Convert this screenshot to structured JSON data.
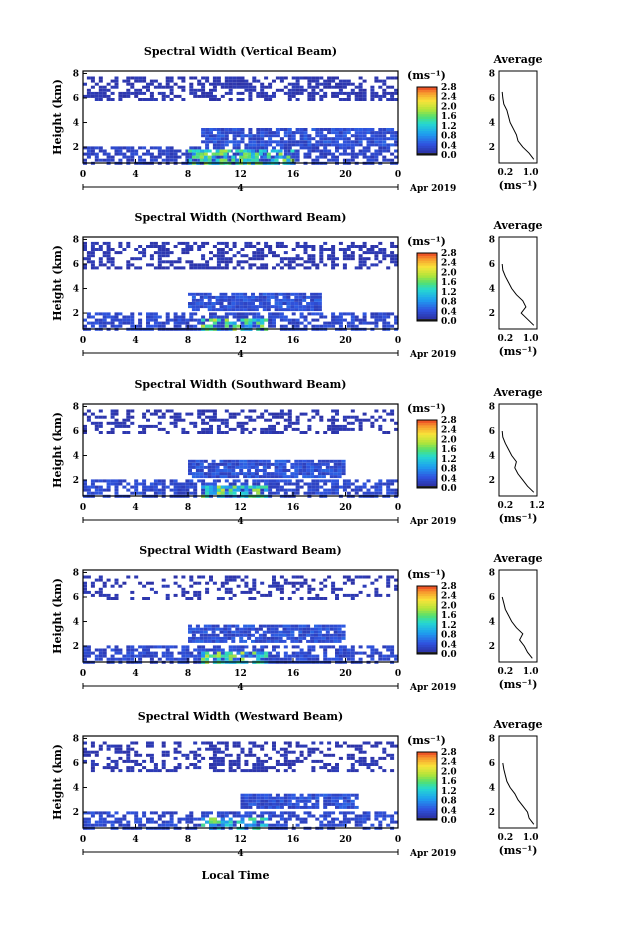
{
  "figure": {
    "xlabel": "Local Time",
    "date_label": "Apr 2019",
    "day_label": "4",
    "avg_title": "Average",
    "cbar_unit": "(ms⁻¹)",
    "avg_xlabel": "(ms⁻¹)"
  },
  "chart_data": [
    {
      "type": "heatmap",
      "title": "Spectral Width (Vertical Beam)",
      "ylabel": "Height (km)",
      "xlim": [
        0,
        24
      ],
      "ylim": [
        0.7,
        8.2
      ],
      "xticks": [
        "0",
        "4",
        "8",
        "12",
        "16",
        "20",
        "0"
      ],
      "yticks": [
        "2",
        "4",
        "6",
        "8"
      ],
      "colorbar": {
        "range": [
          0,
          2.8
        ],
        "ticks": [
          "0.0",
          "0.4",
          "0.8",
          "1.2",
          "1.6",
          "2.0",
          "2.4",
          "2.8"
        ]
      },
      "regions": [
        {
          "t": [
            0,
            24
          ],
          "h": [
            6.0,
            8.0
          ],
          "value": 0.12,
          "density": 0.55
        },
        {
          "t": [
            9,
            24
          ],
          "h": [
            2.3,
            3.7
          ],
          "value": 0.35,
          "density": 0.85
        },
        {
          "t": [
            0,
            24
          ],
          "h": [
            0.8,
            2.3
          ],
          "value": 0.25,
          "density": 0.7
        },
        {
          "t": [
            8,
            16
          ],
          "h": [
            0.8,
            2.0
          ],
          "value": 1.2,
          "density": 0.8
        }
      ],
      "average_profile": {
        "xticks": [
          "0.2",
          "1.0"
        ],
        "xlim": [
          0,
          1.2
        ],
        "height": [
          1.0,
          1.5,
          2.0,
          2.5,
          3.0,
          3.5,
          4.0,
          4.5,
          5.0,
          5.5,
          6.0,
          6.5
        ],
        "width": [
          1.1,
          0.95,
          0.75,
          0.6,
          0.55,
          0.45,
          0.35,
          0.3,
          0.25,
          0.15,
          0.12,
          0.1
        ]
      }
    },
    {
      "type": "heatmap",
      "title": "Spectral Width (Northward Beam)",
      "ylabel": "Height (km)",
      "xlim": [
        0,
        24
      ],
      "ylim": [
        0.7,
        8.2
      ],
      "xticks": [
        "0",
        "4",
        "8",
        "12",
        "16",
        "20",
        "0"
      ],
      "yticks": [
        "2",
        "4",
        "6",
        "8"
      ],
      "colorbar": {
        "range": [
          0,
          2.8
        ],
        "ticks": [
          "0.0",
          "0.4",
          "0.8",
          "1.2",
          "1.6",
          "2.0",
          "2.4",
          "2.8"
        ]
      },
      "regions": [
        {
          "t": [
            0,
            24
          ],
          "h": [
            5.8,
            8.0
          ],
          "value": 0.12,
          "density": 0.5
        },
        {
          "t": [
            8,
            18
          ],
          "h": [
            2.4,
            3.7
          ],
          "value": 0.35,
          "density": 0.85
        },
        {
          "t": [
            0,
            24
          ],
          "h": [
            0.8,
            2.3
          ],
          "value": 0.3,
          "density": 0.65
        },
        {
          "t": [
            9,
            14
          ],
          "h": [
            0.8,
            1.8
          ],
          "value": 1.3,
          "density": 0.7
        }
      ],
      "average_profile": {
        "xticks": [
          "0.2",
          "1.0"
        ],
        "xlim": [
          0,
          1.2
        ],
        "height": [
          1.0,
          1.5,
          2.0,
          2.5,
          3.0,
          3.5,
          4.0,
          4.5,
          5.0,
          5.5,
          6.0
        ],
        "width": [
          1.1,
          0.9,
          0.7,
          0.85,
          0.75,
          0.55,
          0.4,
          0.3,
          0.2,
          0.12,
          0.1
        ]
      }
    },
    {
      "type": "heatmap",
      "title": "Spectral Width (Southward Beam)",
      "ylabel": "Height (km)",
      "xlim": [
        0,
        24
      ],
      "ylim": [
        0.7,
        8.2
      ],
      "xticks": [
        "0",
        "4",
        "8",
        "12",
        "16",
        "20",
        "0"
      ],
      "yticks": [
        "2",
        "4",
        "6",
        "8"
      ],
      "colorbar": {
        "range": [
          0,
          2.8
        ],
        "ticks": [
          "0.0",
          "0.4",
          "0.8",
          "1.2",
          "1.6",
          "2.0",
          "2.4",
          "2.8"
        ]
      },
      "regions": [
        {
          "t": [
            0,
            24
          ],
          "h": [
            6.0,
            8.0
          ],
          "value": 0.12,
          "density": 0.4
        },
        {
          "t": [
            8,
            20
          ],
          "h": [
            2.4,
            3.8
          ],
          "value": 0.35,
          "density": 0.85
        },
        {
          "t": [
            0,
            24
          ],
          "h": [
            0.8,
            2.3
          ],
          "value": 0.3,
          "density": 0.65
        },
        {
          "t": [
            9,
            14
          ],
          "h": [
            0.8,
            1.8
          ],
          "value": 1.3,
          "density": 0.7
        }
      ],
      "average_profile": {
        "xticks": [
          "0.2",
          "1.2"
        ],
        "xlim": [
          0,
          1.2
        ],
        "height": [
          1.0,
          1.5,
          2.0,
          2.5,
          3.0,
          3.5,
          4.0,
          4.5,
          5.0,
          5.5,
          6.0
        ],
        "width": [
          1.1,
          0.9,
          0.75,
          0.6,
          0.5,
          0.55,
          0.4,
          0.3,
          0.2,
          0.12,
          0.1
        ]
      }
    },
    {
      "type": "heatmap",
      "title": "Spectral Width (Eastward Beam)",
      "ylabel": "Height (km)",
      "xlim": [
        0,
        24
      ],
      "ylim": [
        0.7,
        8.2
      ],
      "xticks": [
        "0",
        "4",
        "8",
        "12",
        "16",
        "20",
        "0"
      ],
      "yticks": [
        "2",
        "4",
        "6",
        "8"
      ],
      "colorbar": {
        "range": [
          0,
          2.8
        ],
        "ticks": [
          "0.0",
          "0.4",
          "0.8",
          "1.2",
          "1.6",
          "2.0",
          "2.4",
          "2.8"
        ]
      },
      "regions": [
        {
          "t": [
            0,
            24
          ],
          "h": [
            6.0,
            8.0
          ],
          "value": 0.12,
          "density": 0.35
        },
        {
          "t": [
            8,
            20
          ],
          "h": [
            2.5,
            3.8
          ],
          "value": 0.35,
          "density": 0.85
        },
        {
          "t": [
            0,
            24
          ],
          "h": [
            0.8,
            2.3
          ],
          "value": 0.3,
          "density": 0.65
        },
        {
          "t": [
            9,
            14
          ],
          "h": [
            0.8,
            1.8
          ],
          "value": 1.3,
          "density": 0.7
        }
      ],
      "average_profile": {
        "xticks": [
          "0.2",
          "1.0"
        ],
        "xlim": [
          0,
          1.2
        ],
        "height": [
          1.0,
          1.5,
          2.0,
          2.5,
          3.0,
          3.5,
          4.0,
          4.5,
          5.0,
          5.5,
          6.0
        ],
        "width": [
          1.05,
          0.9,
          0.8,
          0.65,
          0.75,
          0.55,
          0.4,
          0.3,
          0.2,
          0.15,
          0.1
        ]
      }
    },
    {
      "type": "heatmap",
      "title": "Spectral Width (Westward Beam)",
      "ylabel": "Height (km)",
      "xlim": [
        0,
        24
      ],
      "ylim": [
        0.7,
        8.2
      ],
      "xticks": [
        "0",
        "4",
        "8",
        "12",
        "16",
        "20",
        "0"
      ],
      "yticks": [
        "2",
        "4",
        "6",
        "8"
      ],
      "colorbar": {
        "range": [
          0,
          2.8
        ],
        "ticks": [
          "0.0",
          "0.4",
          "0.8",
          "1.2",
          "1.6",
          "2.0",
          "2.4",
          "2.8"
        ]
      },
      "regions": [
        {
          "t": [
            0,
            24
          ],
          "h": [
            5.5,
            8.0
          ],
          "value": 0.12,
          "density": 0.4
        },
        {
          "t": [
            12,
            21
          ],
          "h": [
            2.5,
            3.7
          ],
          "value": 0.35,
          "density": 0.85
        },
        {
          "t": [
            0,
            24
          ],
          "h": [
            0.8,
            2.3
          ],
          "value": 0.3,
          "density": 0.6
        },
        {
          "t": [
            9,
            14
          ],
          "h": [
            0.8,
            1.8
          ],
          "value": 1.2,
          "density": 0.6
        }
      ],
      "average_profile": {
        "xticks": [
          "0.2",
          "1.0"
        ],
        "xlim": [
          0,
          1.2
        ],
        "height": [
          1.0,
          1.5,
          2.0,
          2.5,
          3.0,
          3.5,
          4.0,
          4.5,
          5.0,
          5.5,
          6.0
        ],
        "width": [
          1.1,
          0.95,
          0.9,
          0.75,
          0.6,
          0.5,
          0.35,
          0.25,
          0.2,
          0.15,
          0.12
        ]
      }
    }
  ]
}
